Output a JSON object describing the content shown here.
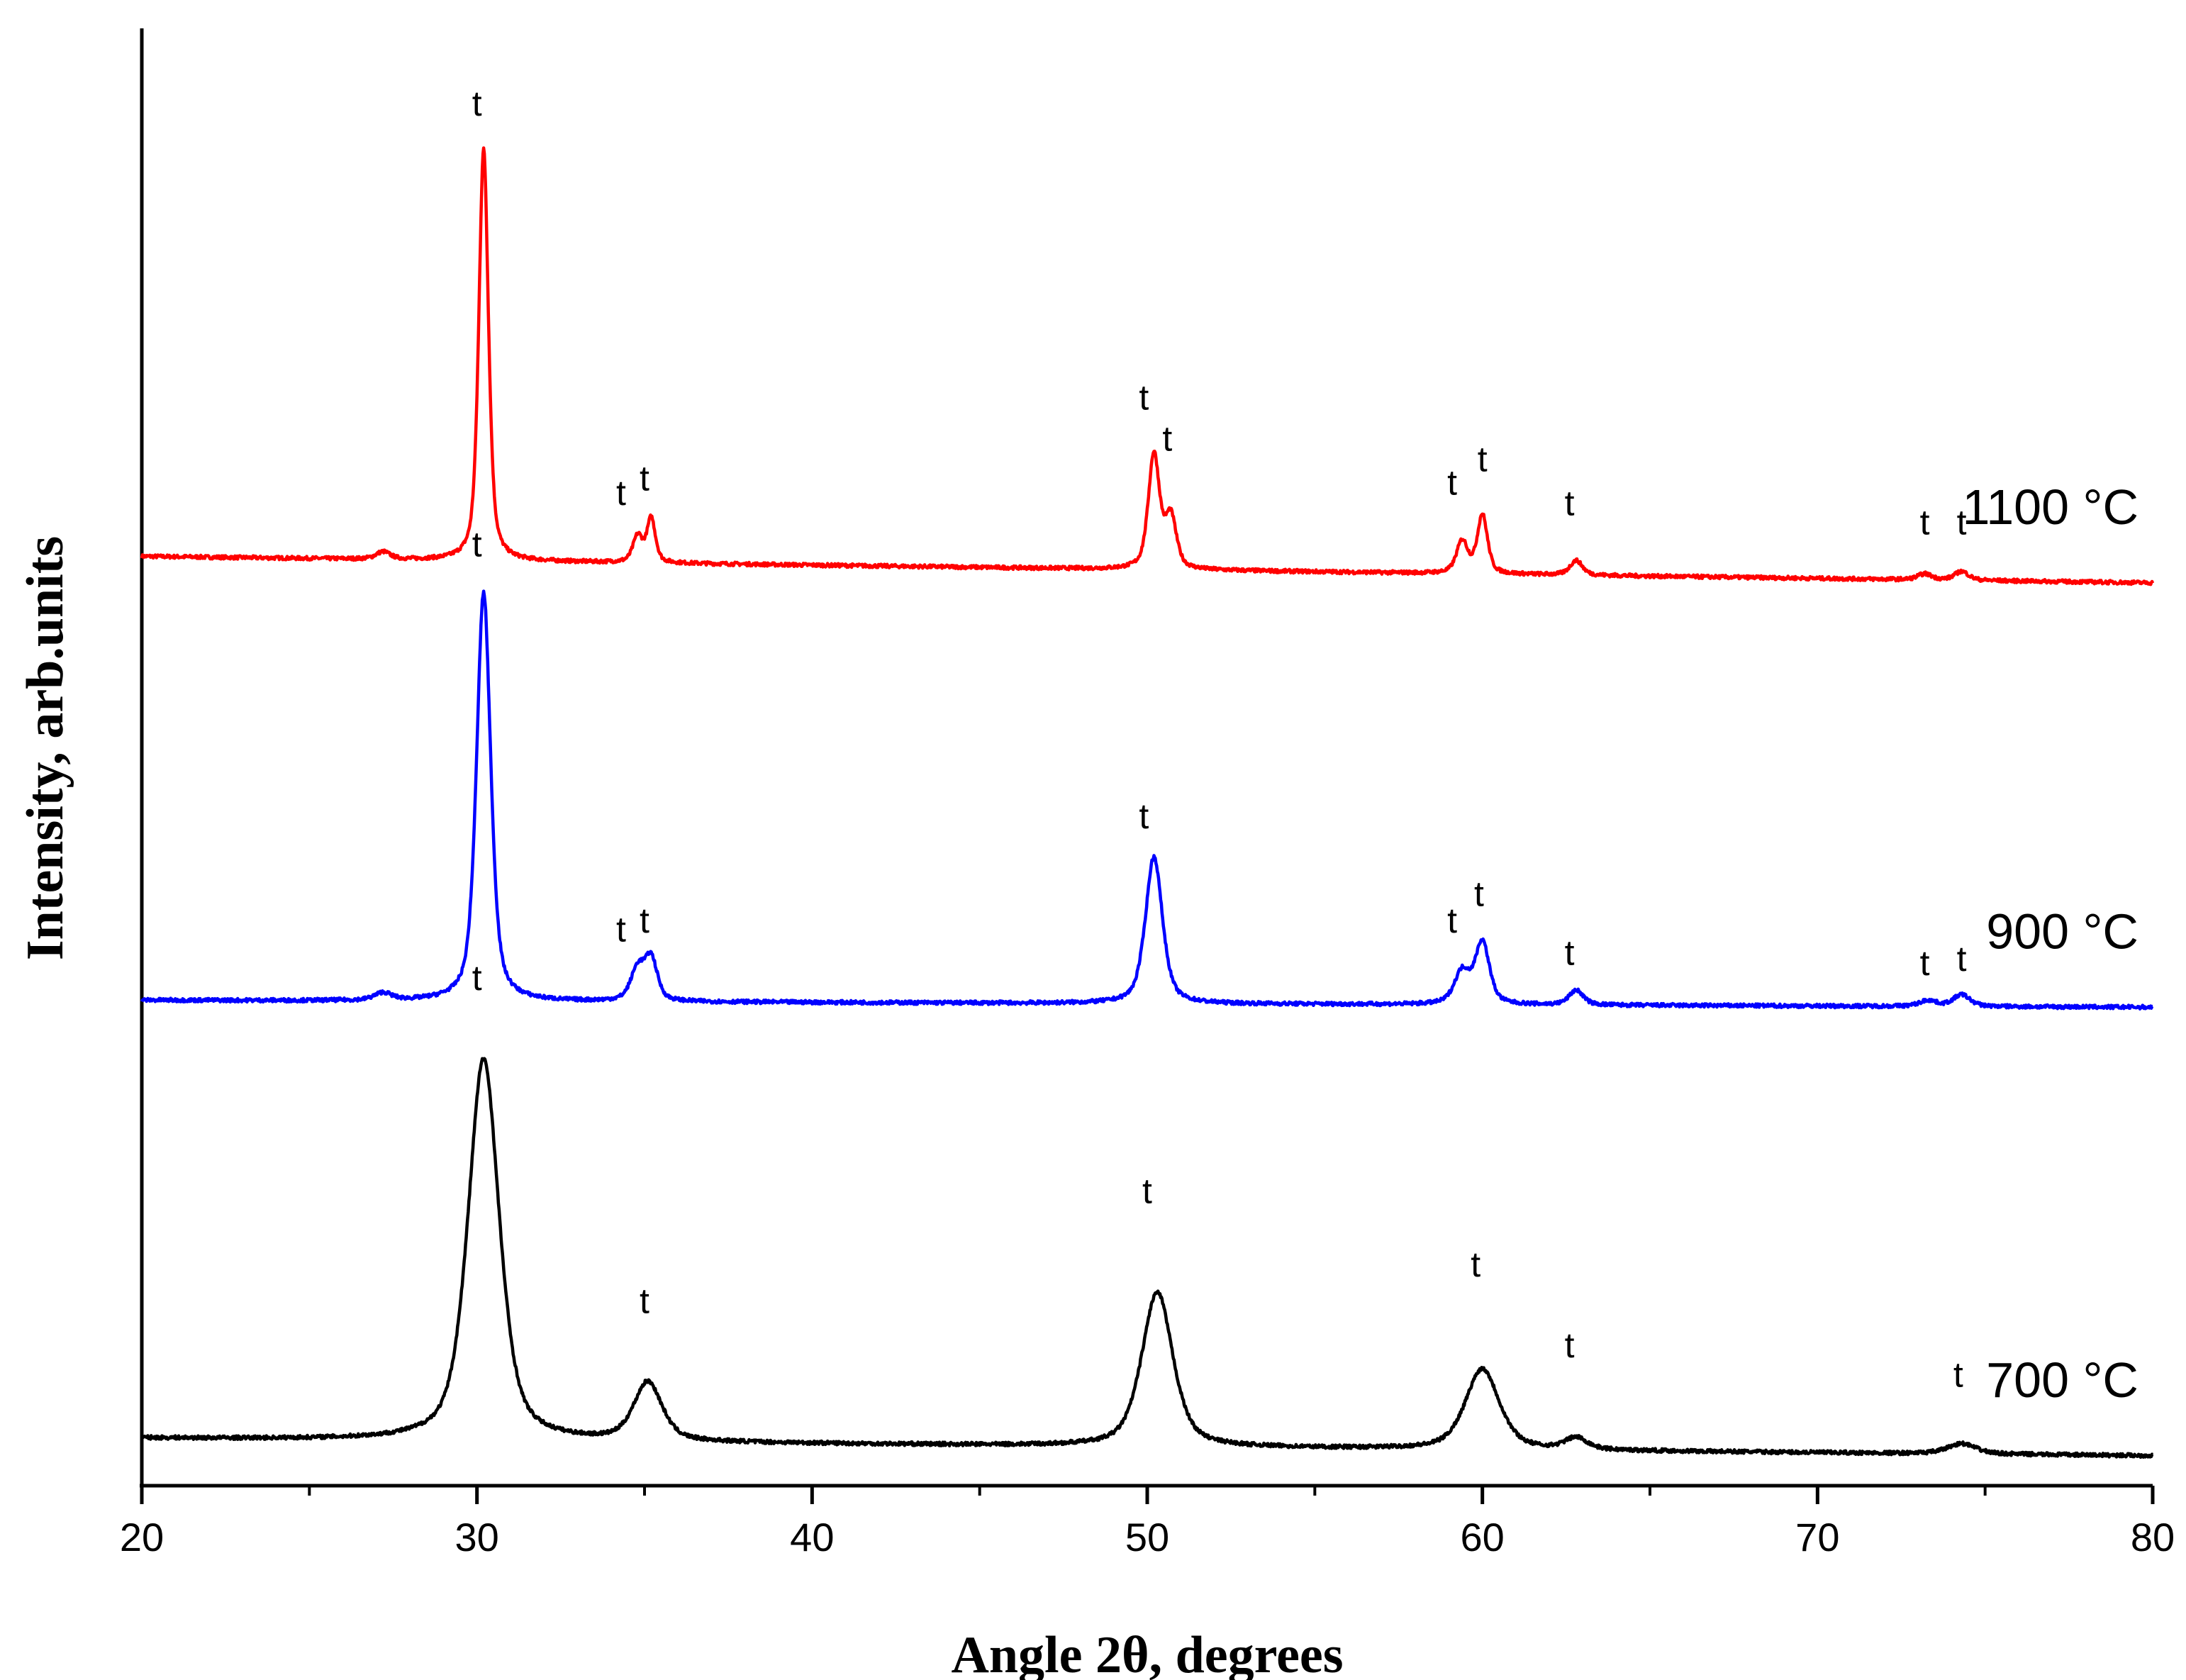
{
  "chart_data": {
    "type": "line",
    "title": "",
    "xlabel": "Angle 2θ, degrees",
    "ylabel": "Intensity, arb.units",
    "xlim": [
      20,
      80
    ],
    "x_ticks": [
      20,
      30,
      40,
      50,
      60,
      70,
      80
    ],
    "x_minor_step": 5,
    "y_ticks_shown": false,
    "grid": false,
    "legend": "none (series labelled inline at right)",
    "series": [
      {
        "name": "1100 °C",
        "color": "#ff0000",
        "baseline": 3.3,
        "baseline_slope": -0.003,
        "peaks": [
          {
            "x": 27.2,
            "h": 0.05,
            "w": 0.25
          },
          {
            "x": 30.2,
            "h": 2.8,
            "w": 0.17
          },
          {
            "x": 34.8,
            "h": 0.18,
            "w": 0.17
          },
          {
            "x": 35.2,
            "h": 0.3,
            "w": 0.15
          },
          {
            "x": 50.2,
            "h": 0.78,
            "w": 0.2
          },
          {
            "x": 50.7,
            "h": 0.35,
            "w": 0.2
          },
          {
            "x": 59.4,
            "h": 0.22,
            "w": 0.2
          },
          {
            "x": 60.0,
            "h": 0.4,
            "w": 0.18
          },
          {
            "x": 62.8,
            "h": 0.1,
            "w": 0.22
          },
          {
            "x": 73.2,
            "h": 0.04,
            "w": 0.25
          },
          {
            "x": 74.3,
            "h": 0.06,
            "w": 0.25
          }
        ]
      },
      {
        "name": "900 °C",
        "color": "#0000ff",
        "baseline": 0.28,
        "baseline_slope": -0.0008,
        "peaks": [
          {
            "x": 27.2,
            "h": 0.05,
            "w": 0.3
          },
          {
            "x": 30.2,
            "h": 2.78,
            "w": 0.25
          },
          {
            "x": 34.8,
            "h": 0.22,
            "w": 0.25
          },
          {
            "x": 35.2,
            "h": 0.28,
            "w": 0.22
          },
          {
            "x": 50.2,
            "h": 1.0,
            "w": 0.3
          },
          {
            "x": 59.4,
            "h": 0.22,
            "w": 0.28
          },
          {
            "x": 60.0,
            "h": 0.42,
            "w": 0.25
          },
          {
            "x": 62.8,
            "h": 0.1,
            "w": 0.25
          },
          {
            "x": 73.3,
            "h": 0.04,
            "w": 0.3
          },
          {
            "x": 74.3,
            "h": 0.08,
            "w": 0.3
          }
        ]
      },
      {
        "name": "700 °C",
        "color": "#000000",
        "baseline": -2.7,
        "baseline_slope": -0.002,
        "peaks": [
          {
            "x": 30.2,
            "h": 2.6,
            "w": 0.55
          },
          {
            "x": 35.1,
            "h": 0.4,
            "w": 0.5
          },
          {
            "x": 50.3,
            "h": 1.05,
            "w": 0.55
          },
          {
            "x": 60.0,
            "h": 0.55,
            "w": 0.6
          },
          {
            "x": 62.8,
            "h": 0.08,
            "w": 0.4
          },
          {
            "x": 74.3,
            "h": 0.07,
            "w": 0.5
          }
        ]
      }
    ],
    "peak_annotations": [
      {
        "text": "t",
        "x": 30.0,
        "y": 6.3
      },
      {
        "text": "t",
        "x": 34.3,
        "y": 3.65
      },
      {
        "text": "t",
        "x": 35.0,
        "y": 3.75
      },
      {
        "text": "t",
        "x": 49.9,
        "y": 4.3
      },
      {
        "text": "t",
        "x": 50.6,
        "y": 4.02
      },
      {
        "text": "t",
        "x": 59.1,
        "y": 3.72
      },
      {
        "text": "t",
        "x": 60.0,
        "y": 3.88
      },
      {
        "text": "t",
        "x": 62.6,
        "y": 3.58
      },
      {
        "text": "t",
        "x": 73.2,
        "y": 3.45
      },
      {
        "text": "t",
        "x": 74.3,
        "y": 3.45
      },
      {
        "text": "t",
        "x": 30.0,
        "y": 3.3
      },
      {
        "text": "t",
        "x": 34.3,
        "y": 0.68
      },
      {
        "text": "t",
        "x": 35.0,
        "y": 0.74
      },
      {
        "text": "t",
        "x": 49.9,
        "y": 1.45
      },
      {
        "text": "t",
        "x": 59.1,
        "y": 0.74
      },
      {
        "text": "t",
        "x": 59.9,
        "y": 0.92
      },
      {
        "text": "t",
        "x": 62.6,
        "y": 0.52
      },
      {
        "text": "t",
        "x": 73.2,
        "y": 0.45
      },
      {
        "text": "t",
        "x": 74.3,
        "y": 0.48
      },
      {
        "text": "t",
        "x": 30.0,
        "y": 0.35
      },
      {
        "text": "t",
        "x": 35.0,
        "y": -1.85
      },
      {
        "text": "t",
        "x": 50.0,
        "y": -1.1
      },
      {
        "text": "t",
        "x": 59.8,
        "y": -1.6
      },
      {
        "text": "t",
        "x": 62.6,
        "y": -2.15
      },
      {
        "text": "t",
        "x": 74.2,
        "y": -2.35
      }
    ]
  }
}
